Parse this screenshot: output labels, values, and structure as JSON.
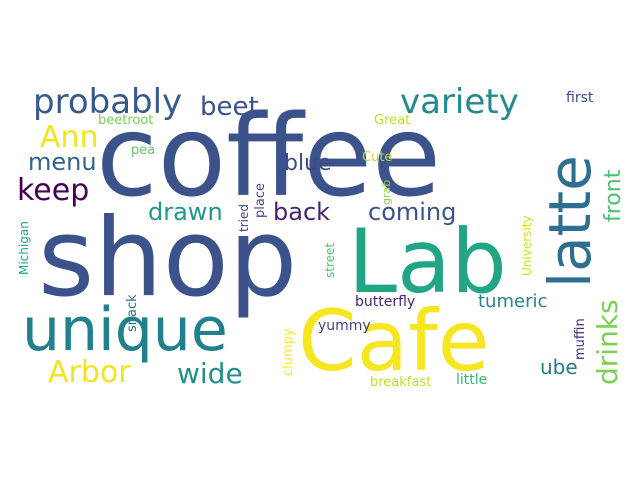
{
  "words": [
    {
      "id": "coffee",
      "text": "coffee",
      "color": "#3b528b"
    },
    {
      "id": "shop",
      "text": "shop",
      "color": "#3b528b"
    },
    {
      "id": "lab",
      "text": "Lab",
      "color": "#21a585"
    },
    {
      "id": "cafe",
      "text": "Cafe",
      "color": "#f6e620"
    },
    {
      "id": "unique",
      "text": "unique",
      "color": "#20808c"
    },
    {
      "id": "latte",
      "text": "latte",
      "color": "#2e6e8e"
    },
    {
      "id": "probably",
      "text": "probably",
      "color": "#38598c"
    },
    {
      "id": "variety",
      "text": "variety",
      "color": "#238a8d"
    },
    {
      "id": "beet",
      "text": "beet",
      "color": "#3b528b"
    },
    {
      "id": "ann",
      "text": "Ann",
      "color": "#f1e51d"
    },
    {
      "id": "menu",
      "text": "menu",
      "color": "#33638d"
    },
    {
      "id": "keep",
      "text": "keep",
      "color": "#440154"
    },
    {
      "id": "blue",
      "text": "blue",
      "color": "#3e4989"
    },
    {
      "id": "drawn",
      "text": "drawn",
      "color": "#1f988b"
    },
    {
      "id": "back",
      "text": "back",
      "color": "#481f70"
    },
    {
      "id": "coming",
      "text": "coming",
      "color": "#3b528b"
    },
    {
      "id": "front",
      "text": "front",
      "color": "#4ac16d"
    },
    {
      "id": "drinks",
      "text": "drinks",
      "color": "#7ad151"
    },
    {
      "id": "arbor",
      "text": "Arbor",
      "color": "#f1e51d"
    },
    {
      "id": "wide",
      "text": "wide",
      "color": "#21918c"
    },
    {
      "id": "tumeric",
      "text": "tumeric",
      "color": "#25848e"
    },
    {
      "id": "ube",
      "text": "ube",
      "color": "#2a788e"
    },
    {
      "id": "butterfly",
      "text": "butterfly",
      "color": "#482475"
    },
    {
      "id": "yummy",
      "text": "yummy",
      "color": "#414487"
    },
    {
      "id": "breakfast",
      "text": "breakfast",
      "color": "#bddf26"
    },
    {
      "id": "little",
      "text": "little",
      "color": "#35b779"
    },
    {
      "id": "muffin",
      "text": "muffin",
      "color": "#472d7b"
    },
    {
      "id": "first",
      "text": "first",
      "color": "#3e4989"
    },
    {
      "id": "great",
      "text": "Great",
      "color": "#bddf26"
    },
    {
      "id": "cute",
      "text": "Cute",
      "color": "#b5de2b"
    },
    {
      "id": "pea",
      "text": "pea",
      "color": "#5ec962"
    },
    {
      "id": "beetroot",
      "text": "beetroot",
      "color": "#7ad151"
    },
    {
      "id": "tried",
      "text": "tried",
      "color": "#404688"
    },
    {
      "id": "place",
      "text": "place",
      "color": "#3e4a89"
    },
    {
      "id": "grab",
      "text": "grab",
      "color": "#8fd744"
    },
    {
      "id": "street",
      "text": "street",
      "color": "#52c569"
    },
    {
      "id": "university",
      "text": "University",
      "color": "#d0e11c"
    },
    {
      "id": "michigan",
      "text": "Michigan",
      "color": "#21a585"
    },
    {
      "id": "snack",
      "text": "snack",
      "color": "#2c718e"
    },
    {
      "id": "clumpy",
      "text": "clumpy",
      "color": "#fde725"
    }
  ]
}
